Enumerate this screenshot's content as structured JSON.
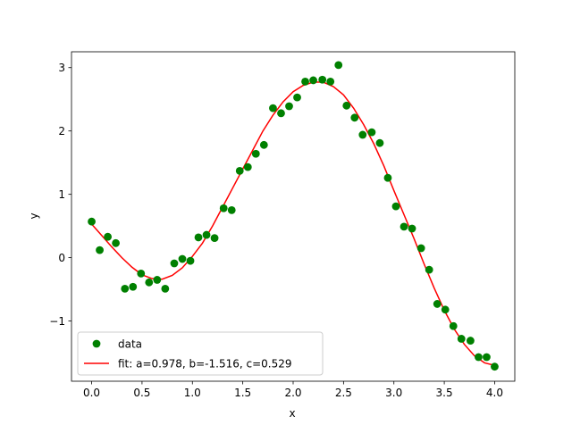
{
  "chart_data": {
    "type": "scatter",
    "title": "",
    "xlabel": "x",
    "ylabel": "y",
    "xlim": [
      -0.2,
      4.2
    ],
    "ylim": [
      -1.95,
      3.25
    ],
    "grid": false,
    "legend_position": "lower-left",
    "x_ticks": [
      0.0,
      0.5,
      1.0,
      1.5,
      2.0,
      2.5,
      3.0,
      3.5,
      4.0
    ],
    "x_tick_labels": [
      "0.0",
      "0.5",
      "1.0",
      "1.5",
      "2.0",
      "2.5",
      "3.0",
      "3.5",
      "4.0"
    ],
    "y_ticks": [
      -1,
      0,
      1,
      2,
      3
    ],
    "y_tick_labels": [
      "−1",
      "0",
      "1",
      "2",
      "3"
    ],
    "series": [
      {
        "name": "data",
        "kind": "scatter",
        "color": "#008000",
        "points": [
          [
            0.0,
            0.57
          ],
          [
            0.08,
            0.12
          ],
          [
            0.16,
            0.33
          ],
          [
            0.24,
            0.23
          ],
          [
            0.33,
            -0.49
          ],
          [
            0.41,
            -0.46
          ],
          [
            0.49,
            -0.25
          ],
          [
            0.57,
            -0.39
          ],
          [
            0.65,
            -0.35
          ],
          [
            0.73,
            -0.49
          ],
          [
            0.82,
            -0.09
          ],
          [
            0.9,
            -0.02
          ],
          [
            0.98,
            -0.05
          ],
          [
            1.06,
            0.32
          ],
          [
            1.14,
            0.36
          ],
          [
            1.22,
            0.31
          ],
          [
            1.31,
            0.78
          ],
          [
            1.39,
            0.75
          ],
          [
            1.47,
            1.37
          ],
          [
            1.55,
            1.43
          ],
          [
            1.63,
            1.64
          ],
          [
            1.71,
            1.78
          ],
          [
            1.8,
            2.36
          ],
          [
            1.88,
            2.28
          ],
          [
            1.96,
            2.39
          ],
          [
            2.04,
            2.53
          ],
          [
            2.12,
            2.78
          ],
          [
            2.2,
            2.8
          ],
          [
            2.29,
            2.81
          ],
          [
            2.37,
            2.78
          ],
          [
            2.45,
            3.04
          ],
          [
            2.53,
            2.4
          ],
          [
            2.61,
            2.21
          ],
          [
            2.69,
            1.94
          ],
          [
            2.78,
            1.98
          ],
          [
            2.86,
            1.81
          ],
          [
            2.94,
            1.26
          ],
          [
            3.02,
            0.81
          ],
          [
            3.1,
            0.49
          ],
          [
            3.18,
            0.46
          ],
          [
            3.27,
            0.15
          ],
          [
            3.35,
            -0.19
          ],
          [
            3.43,
            -0.73
          ],
          [
            3.51,
            -0.82
          ],
          [
            3.59,
            -1.08
          ],
          [
            3.67,
            -1.28
          ],
          [
            3.76,
            -1.31
          ],
          [
            3.84,
            -1.57
          ],
          [
            3.92,
            -1.57
          ],
          [
            4.0,
            -1.72
          ]
        ]
      },
      {
        "name": "fit: a=0.978, b=-1.516, c=0.529",
        "kind": "line",
        "color": "#ff0000",
        "points": [
          [
            0.0,
            0.53
          ],
          [
            0.1,
            0.35
          ],
          [
            0.2,
            0.17
          ],
          [
            0.3,
            0.0
          ],
          [
            0.4,
            -0.15
          ],
          [
            0.5,
            -0.27
          ],
          [
            0.6,
            -0.33
          ],
          [
            0.7,
            -0.34
          ],
          [
            0.8,
            -0.28
          ],
          [
            0.9,
            -0.16
          ],
          [
            1.0,
            0.02
          ],
          [
            1.1,
            0.23
          ],
          [
            1.2,
            0.5
          ],
          [
            1.3,
            0.8
          ],
          [
            1.4,
            1.1
          ],
          [
            1.5,
            1.4
          ],
          [
            1.6,
            1.7
          ],
          [
            1.7,
            2.0
          ],
          [
            1.8,
            2.25
          ],
          [
            1.9,
            2.46
          ],
          [
            2.0,
            2.62
          ],
          [
            2.1,
            2.72
          ],
          [
            2.2,
            2.77
          ],
          [
            2.3,
            2.77
          ],
          [
            2.4,
            2.7
          ],
          [
            2.5,
            2.57
          ],
          [
            2.6,
            2.36
          ],
          [
            2.7,
            2.1
          ],
          [
            2.8,
            1.8
          ],
          [
            2.9,
            1.45
          ],
          [
            3.0,
            1.06
          ],
          [
            3.1,
            0.68
          ],
          [
            3.2,
            0.3
          ],
          [
            3.3,
            -0.1
          ],
          [
            3.4,
            -0.48
          ],
          [
            3.5,
            -0.83
          ],
          [
            3.6,
            -1.13
          ],
          [
            3.7,
            -1.37
          ],
          [
            3.8,
            -1.55
          ],
          [
            3.9,
            -1.66
          ],
          [
            4.0,
            -1.7
          ]
        ]
      }
    ]
  }
}
